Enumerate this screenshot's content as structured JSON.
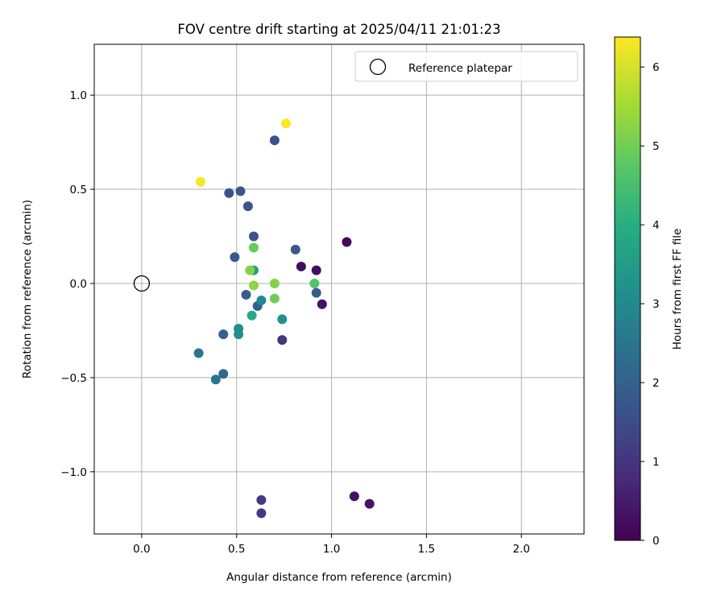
{
  "chart_data": {
    "type": "scatter",
    "title": "FOV centre drift starting at 2025/04/11 21:01:23",
    "xlabel": "Angular distance from reference (arcmin)",
    "ylabel": "Rotation from reference (arcmin)",
    "xlim": [
      -0.25,
      2.33
    ],
    "ylim": [
      -1.33,
      1.27
    ],
    "xticks": [
      0.0,
      0.5,
      1.0,
      1.5,
      2.0
    ],
    "xtick_labels": [
      "0.0",
      "0.5",
      "1.0",
      "1.5",
      "2.0"
    ],
    "yticks": [
      -1.0,
      -0.5,
      0.0,
      0.5,
      1.0
    ],
    "ytick_labels": [
      "−1.0",
      "−0.5",
      "0.0",
      "0.5",
      "1.0"
    ],
    "grid": true,
    "legend_position": "top-right",
    "reference": {
      "name": "Reference platepar",
      "x": 0.0,
      "y": 0.0
    },
    "colorbar": {
      "label": "Hours from first FF file",
      "colormap": "viridis",
      "range": [
        0,
        6.38
      ],
      "ticks": [
        0,
        1,
        2,
        3,
        4,
        5,
        6
      ],
      "tick_labels": [
        "0",
        "1",
        "2",
        "3",
        "4",
        "5",
        "6"
      ]
    },
    "points": [
      {
        "x": 1.08,
        "y": 0.22,
        "hours": 0.15
      },
      {
        "x": 0.84,
        "y": 0.09,
        "hours": 0.2
      },
      {
        "x": 0.92,
        "y": 0.07,
        "hours": 0.25
      },
      {
        "x": 0.95,
        "y": -0.11,
        "hours": 0.3
      },
      {
        "x": 1.12,
        "y": -1.13,
        "hours": 0.3
      },
      {
        "x": 1.2,
        "y": -1.17,
        "hours": 0.35
      },
      {
        "x": 0.74,
        "y": -0.3,
        "hours": 1.0
      },
      {
        "x": 0.63,
        "y": -1.15,
        "hours": 1.1
      },
      {
        "x": 0.63,
        "y": -1.22,
        "hours": 1.1
      },
      {
        "x": 0.7,
        "y": 0.76,
        "hours": 1.6
      },
      {
        "x": 0.46,
        "y": 0.48,
        "hours": 1.6
      },
      {
        "x": 0.52,
        "y": 0.49,
        "hours": 1.7
      },
      {
        "x": 0.56,
        "y": 0.41,
        "hours": 1.7
      },
      {
        "x": 0.59,
        "y": 0.25,
        "hours": 1.7
      },
      {
        "x": 0.81,
        "y": 0.18,
        "hours": 1.8
      },
      {
        "x": 0.49,
        "y": 0.14,
        "hours": 1.8
      },
      {
        "x": 0.92,
        "y": -0.05,
        "hours": 1.9
      },
      {
        "x": 0.55,
        "y": -0.06,
        "hours": 1.9
      },
      {
        "x": 0.61,
        "y": -0.12,
        "hours": 2.0
      },
      {
        "x": 0.43,
        "y": -0.27,
        "hours": 2.0
      },
      {
        "x": 0.43,
        "y": -0.48,
        "hours": 2.2
      },
      {
        "x": 0.3,
        "y": -0.37,
        "hours": 2.5
      },
      {
        "x": 0.39,
        "y": -0.51,
        "hours": 2.5
      },
      {
        "x": 0.63,
        "y": -0.09,
        "hours": 3.0
      },
      {
        "x": 0.51,
        "y": -0.24,
        "hours": 3.1
      },
      {
        "x": 0.51,
        "y": -0.27,
        "hours": 3.2
      },
      {
        "x": 0.74,
        "y": -0.19,
        "hours": 3.2
      },
      {
        "x": 0.59,
        "y": 0.07,
        "hours": 3.6
      },
      {
        "x": 0.58,
        "y": -0.17,
        "hours": 3.9
      },
      {
        "x": 0.91,
        "y": 0.0,
        "hours": 4.6
      },
      {
        "x": 0.59,
        "y": 0.19,
        "hours": 4.9
      },
      {
        "x": 0.7,
        "y": -0.08,
        "hours": 5.0
      },
      {
        "x": 0.7,
        "y": 0.0,
        "hours": 5.2
      },
      {
        "x": 0.57,
        "y": 0.07,
        "hours": 5.2
      },
      {
        "x": 0.59,
        "y": -0.01,
        "hours": 5.3
      },
      {
        "x": 0.31,
        "y": 0.54,
        "hours": 6.3
      },
      {
        "x": 0.76,
        "y": 0.85,
        "hours": 6.35
      }
    ]
  }
}
